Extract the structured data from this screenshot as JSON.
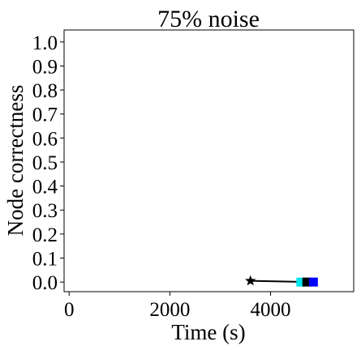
{
  "chart_data": {
    "type": "scatter",
    "title": "75% noise",
    "xlabel": "Time (s)",
    "ylabel": "Node correctness",
    "xlim": [
      -100,
      5650
    ],
    "ylim": [
      -0.04,
      1.05
    ],
    "xticks": [
      0,
      2000,
      4000
    ],
    "xtick_labels": [
      "0",
      "2000",
      "4000"
    ],
    "yticks": [
      0.0,
      0.1,
      0.2,
      0.3,
      0.4,
      0.5,
      0.6,
      0.7,
      0.8,
      0.9,
      1.0
    ],
    "ytick_labels": [
      "0.0",
      "0.1",
      "0.2",
      "0.3",
      "0.4",
      "0.5",
      "0.6",
      "0.7",
      "0.8",
      "0.9",
      "1.0"
    ],
    "grid": false,
    "line": {
      "x": [
        3600,
        4850
      ],
      "y": [
        0.005,
        0.0
      ],
      "color": "#000000"
    },
    "points": [
      {
        "x": 3600,
        "y": 0.005,
        "marker": "star",
        "color": "#000000"
      },
      {
        "x": 4600,
        "y": 0.0,
        "marker": "square",
        "color": "#00e5ee"
      },
      {
        "x": 4720,
        "y": 0.0,
        "marker": "square",
        "color": "#000000"
      },
      {
        "x": 4850,
        "y": 0.0,
        "marker": "square",
        "color": "#0000ff"
      }
    ]
  }
}
